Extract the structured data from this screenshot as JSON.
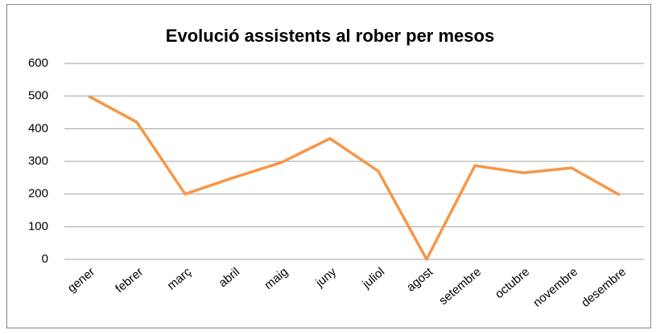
{
  "chart_data": {
    "type": "line",
    "title": "Evolució assistents al rober per mesos",
    "categories": [
      "gener",
      "febrer",
      "març",
      "abril",
      "maig",
      "juny",
      "juliol",
      "agost",
      "setembre",
      "octubre",
      "novembre",
      "desembre"
    ],
    "series": [
      {
        "color": "#f79646",
        "values": [
          500,
          420,
          200,
          250,
          297,
          370,
          270,
          0,
          287,
          265,
          280,
          197
        ]
      }
    ],
    "ylim": [
      0,
      600
    ],
    "yticks": [
      0,
      100,
      200,
      300,
      400,
      500,
      600
    ],
    "grid": true
  }
}
